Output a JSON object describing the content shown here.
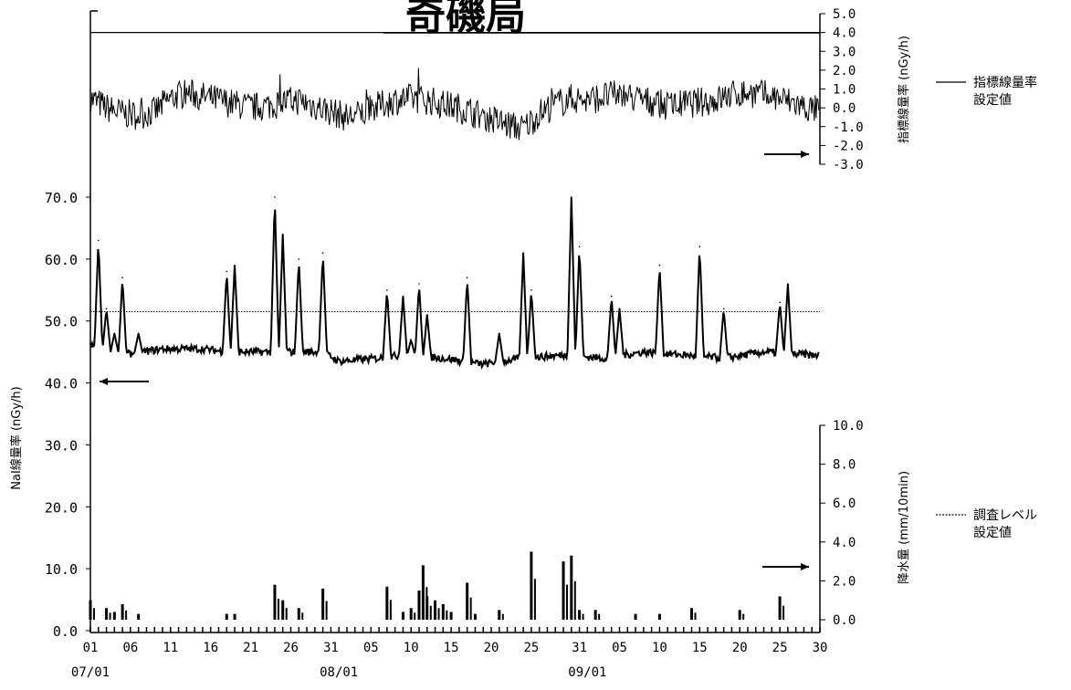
{
  "chart_data": {
    "type": "line",
    "title": "奇磯局",
    "x": {
      "tick_labels": [
        "01",
        "06",
        "11",
        "16",
        "21",
        "26",
        "31",
        "05",
        "10",
        "15",
        "20",
        "25",
        "31",
        "05",
        "10",
        "15",
        "20",
        "25",
        "30"
      ],
      "month_labels": [
        "07/01",
        "08/01",
        "09/01"
      ],
      "range": [
        "07/01",
        "09/30"
      ]
    },
    "panels": [
      {
        "name": "index",
        "ylabel": "指標線量率 (nGy/h)",
        "ylim": [
          -3.0,
          5.0
        ],
        "tick_labels": [
          "5.0",
          "4.0",
          "3.0",
          "2.0",
          "1.0",
          "0.0",
          "-1.0",
          "-2.0",
          "-3.0"
        ],
        "axis_side": "right",
        "threshold": 4.0,
        "series": {
          "day": [
            1,
            3,
            5,
            7,
            9,
            11,
            13,
            15,
            17,
            19,
            21,
            23,
            25,
            27,
            29,
            31,
            33,
            35,
            37,
            39,
            41,
            43,
            45,
            47,
            49,
            51,
            53,
            55,
            57,
            59,
            61,
            63,
            65,
            67,
            69,
            71,
            73,
            75,
            77,
            79,
            81,
            83,
            85,
            87,
            89,
            91
          ],
          "value": [
            0.5,
            0.0,
            -0.3,
            -0.4,
            -0.2,
            0.5,
            0.8,
            0.6,
            0.4,
            0.2,
            0.0,
            0.1,
            0.3,
            0.4,
            0.1,
            -0.2,
            -0.5,
            -0.3,
            0.1,
            0.4,
            0.5,
            0.4,
            0.2,
            0.0,
            -0.3,
            -0.6,
            -0.9,
            -1.1,
            -0.3,
            0.2,
            0.5,
            0.4,
            0.6,
            0.7,
            0.5,
            0.3,
            0.1,
            0.2,
            0.3,
            0.4,
            0.7,
            0.8,
            0.7,
            0.5,
            0.2,
            -0.1
          ]
        }
      },
      {
        "name": "nai",
        "ylabel": "NaI線量率 (nGy/h)",
        "ylim": [
          0.0,
          70.0
        ],
        "tick_labels": [
          "70.0",
          "60.0",
          "50.0",
          "40.0",
          "30.0",
          "20.0",
          "10.0",
          "0.0"
        ],
        "axis_side": "left",
        "survey_level": 51.5,
        "baseline": {
          "day": [
            1,
            5,
            10,
            15,
            18,
            22,
            26,
            30,
            32,
            37,
            40,
            45,
            50,
            55,
            60,
            65,
            70,
            75,
            80,
            85,
            91
          ],
          "value": [
            46,
            44.5,
            45.5,
            45.5,
            45,
            45,
            45,
            45,
            43.5,
            44,
            44.5,
            44,
            43,
            44,
            44.5,
            44,
            45,
            44.5,
            44,
            45,
            44.5
          ]
        },
        "peaks": {
          "day": [
            2,
            3,
            4,
            5,
            7,
            18,
            19,
            24,
            25,
            27,
            30,
            38,
            40,
            41,
            42,
            43,
            48,
            52,
            55,
            56,
            61,
            62,
            66,
            67,
            72,
            77,
            80,
            87,
            88
          ],
          "value": [
            63,
            52,
            48,
            57,
            48,
            58,
            59,
            70,
            64,
            60,
            61,
            55,
            54,
            47,
            56,
            51,
            57,
            48,
            61,
            55,
            70,
            62,
            54,
            52,
            59,
            62,
            52,
            53,
            56
          ]
        }
      },
      {
        "name": "rain",
        "type": "bar",
        "ylabel": "降水量 (mm/10min)",
        "ylim": [
          0.0,
          10.0
        ],
        "tick_labels": [
          "10.0",
          "8.0",
          "6.0",
          "4.0",
          "2.0",
          "0.0"
        ],
        "axis_side": "right",
        "bars": {
          "day": [
            1,
            3,
            4,
            5,
            7,
            18,
            19,
            24,
            25,
            27,
            30,
            38,
            40,
            41,
            42,
            42.5,
            43,
            44,
            45,
            46,
            48,
            49,
            52,
            56,
            60,
            61,
            62,
            64,
            69,
            72,
            76,
            82,
            87
          ],
          "value": [
            1.0,
            0.6,
            0.4,
            0.8,
            0.3,
            0.3,
            0.3,
            1.8,
            1.0,
            0.6,
            1.6,
            1.7,
            0.4,
            0.6,
            1.5,
            2.8,
            1.2,
            1.0,
            0.8,
            0.4,
            1.9,
            0.3,
            0.5,
            3.5,
            3.0,
            3.3,
            0.5,
            0.5,
            0.3,
            0.3,
            0.6,
            0.5,
            1.2
          ]
        }
      }
    ],
    "legend": [
      {
        "line": "solid",
        "label": "指標線量率\n設定値"
      },
      {
        "line": "dotted",
        "label": "調査レベル\n設定値"
      }
    ]
  }
}
